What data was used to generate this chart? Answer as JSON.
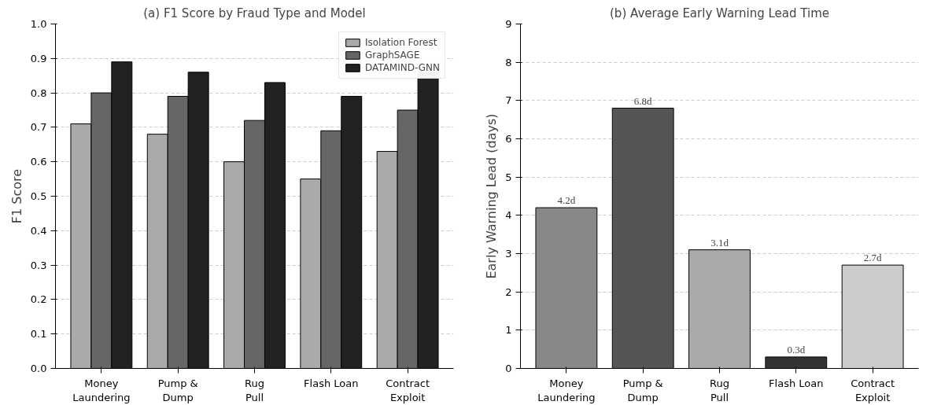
{
  "chart_data": [
    {
      "type": "bar",
      "title": "(a) F1 Score by Fraud Type and Model",
      "ylabel": "F1 Score",
      "categories": [
        "Money\nLaundering",
        "Pump &\nDump",
        "Rug\nPull",
        "Flash Loan",
        "Contract\nExploit"
      ],
      "series": [
        {
          "name": "Isolation Forest",
          "color": "#aaaaaa",
          "values": [
            0.71,
            0.68,
            0.6,
            0.55,
            0.63
          ]
        },
        {
          "name": "GraphSAGE",
          "color": "#666666",
          "values": [
            0.8,
            0.79,
            0.72,
            0.69,
            0.75
          ]
        },
        {
          "name": "DATAMIND-GNN",
          "color": "#222222",
          "values": [
            0.89,
            0.86,
            0.83,
            0.79,
            0.86
          ]
        }
      ],
      "ylim": [
        0,
        1.0
      ],
      "yticks": [
        {
          "value": 0,
          "label": "0.0"
        },
        0.1,
        0.2,
        0.3,
        0.4,
        0.5,
        0.6,
        0.7,
        0.8,
        0.9,
        {
          "value": 1,
          "label": "1.0"
        }
      ],
      "grid": "y",
      "legend": "top right"
    },
    {
      "type": "bar",
      "title": "(b) Average Early Warning Lead Time",
      "ylabel": "Early Warning Lead (days)",
      "categories": [
        "Money\nLaundering",
        "Pump &\nDump",
        "Rug\nPull",
        "Flash Loan",
        "Contract\nExploit"
      ],
      "values": [
        4.2,
        6.8,
        3.1,
        0.3,
        2.7
      ],
      "colors": [
        "#888888",
        "#555555",
        "#aaaaaa",
        "#333333",
        "#cccccc"
      ],
      "value_labels": [
        "4.2d",
        "6.8d",
        "3.1d",
        "0.3d",
        "2.7d"
      ],
      "ylim": [
        0,
        9
      ],
      "yticks": [
        0,
        1,
        2,
        3,
        4,
        5,
        6,
        7,
        8,
        9
      ],
      "grid": "y"
    }
  ]
}
